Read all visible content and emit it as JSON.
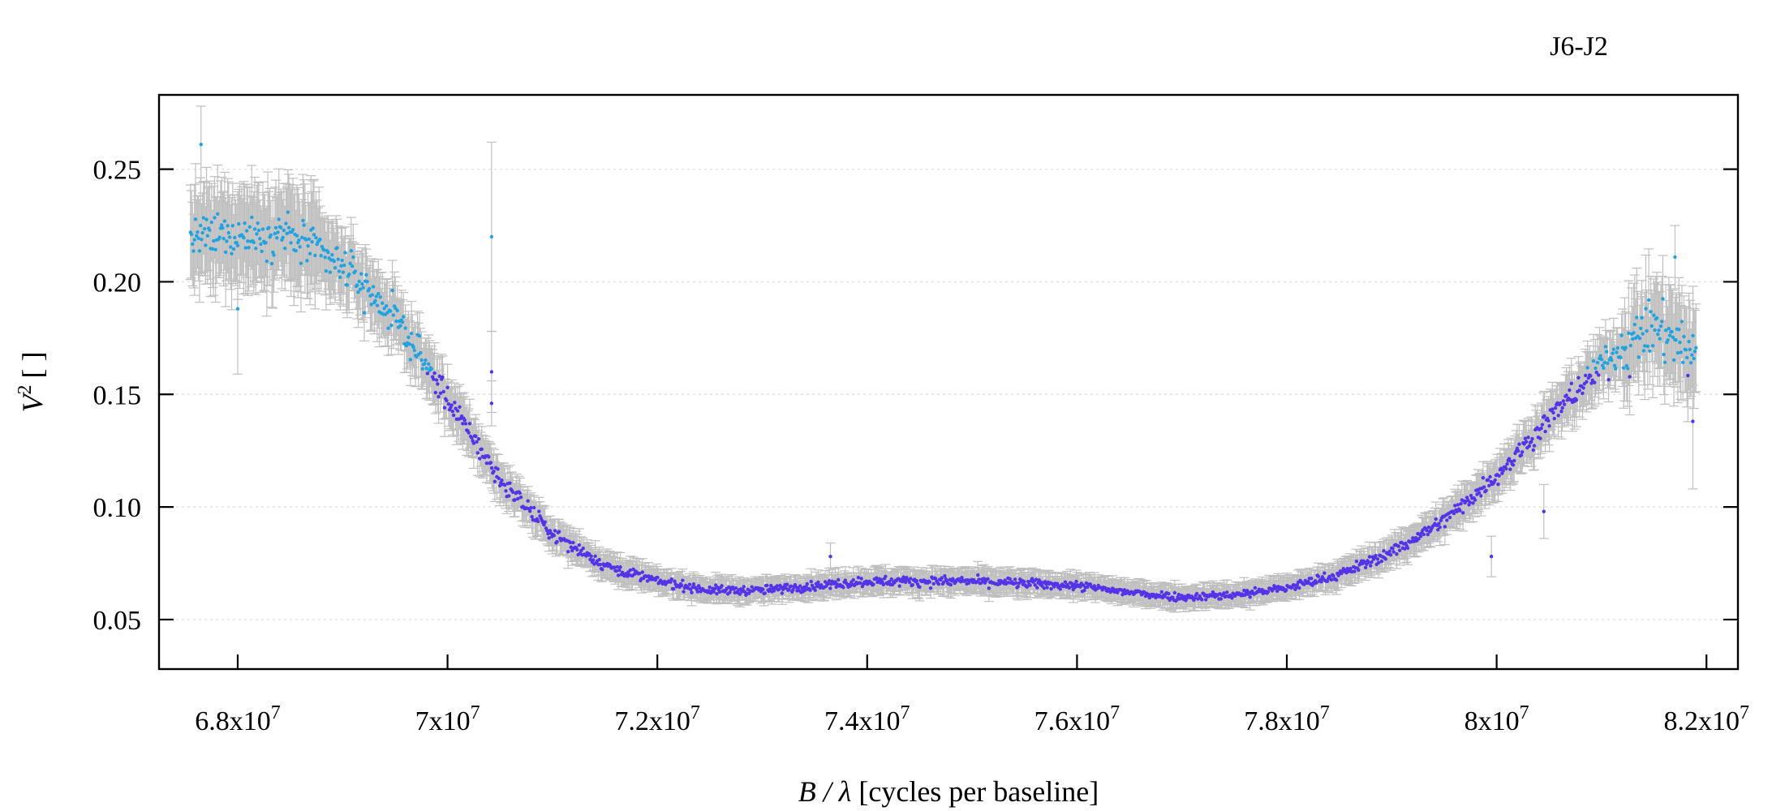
{
  "chart_data": {
    "type": "scatter",
    "label": "J6-J2",
    "xlabel_main": "B / λ",
    "xlabel_unit": "[cycles per baseline]",
    "ylabel_main": "V",
    "ylabel_sup": "2",
    "ylabel_unit": "[ ]",
    "xlim": [
      67250000,
      82300000
    ],
    "ylim": [
      0.028,
      0.283
    ],
    "x_ticks": [
      {
        "value": 68000000,
        "mantissa": "6.8",
        "base": "x10",
        "exp": "7"
      },
      {
        "value": 70000000,
        "mantissa": "7",
        "base": "x10",
        "exp": "7"
      },
      {
        "value": 72000000,
        "mantissa": "7.2",
        "base": "x10",
        "exp": "7"
      },
      {
        "value": 74000000,
        "mantissa": "7.4",
        "base": "x10",
        "exp": "7"
      },
      {
        "value": 76000000,
        "mantissa": "7.6",
        "base": "x10",
        "exp": "7"
      },
      {
        "value": 78000000,
        "mantissa": "7.8",
        "base": "x10",
        "exp": "7"
      },
      {
        "value": 80000000,
        "mantissa": "8",
        "base": "x10",
        "exp": "7"
      },
      {
        "value": 82000000,
        "mantissa": "8.2",
        "base": "x10",
        "exp": "7"
      }
    ],
    "y_ticks": [
      {
        "value": 0.05,
        "label": "0.05"
      },
      {
        "value": 0.1,
        "label": "0.10"
      },
      {
        "value": 0.15,
        "label": "0.15"
      },
      {
        "value": 0.2,
        "label": "0.20"
      },
      {
        "value": 0.25,
        "label": "0.25"
      }
    ],
    "grid": "horizontal dotted",
    "colors": {
      "low_v2": "#5533e8",
      "high_v2": "#22a3e0",
      "errorbar": "#bfbfbf",
      "grid": "#e2e2e2"
    },
    "curve_knots": [
      [
        67550000,
        0.219
      ],
      [
        68000000,
        0.221
      ],
      [
        68500000,
        0.221
      ],
      [
        69000000,
        0.207
      ],
      [
        69500000,
        0.184
      ],
      [
        70000000,
        0.148
      ],
      [
        70500000,
        0.112
      ],
      [
        71000000,
        0.088
      ],
      [
        71500000,
        0.074
      ],
      [
        72000000,
        0.067
      ],
      [
        72500000,
        0.063
      ],
      [
        73000000,
        0.063
      ],
      [
        73500000,
        0.065
      ],
      [
        74000000,
        0.067
      ],
      [
        74500000,
        0.067
      ],
      [
        75000000,
        0.067
      ],
      [
        75500000,
        0.066
      ],
      [
        76000000,
        0.065
      ],
      [
        76500000,
        0.062
      ],
      [
        77000000,
        0.06
      ],
      [
        77500000,
        0.061
      ],
      [
        78000000,
        0.064
      ],
      [
        78500000,
        0.07
      ],
      [
        79000000,
        0.08
      ],
      [
        79500000,
        0.094
      ],
      [
        80000000,
        0.114
      ],
      [
        80500000,
        0.139
      ],
      [
        81000000,
        0.163
      ],
      [
        81500000,
        0.18
      ],
      [
        81900000,
        0.168
      ]
    ],
    "outliers": [
      {
        "x": 67650000,
        "y": 0.261,
        "err": 0.017
      },
      {
        "x": 68000000,
        "y": 0.188,
        "err": 0.029
      },
      {
        "x": 70420000,
        "y": 0.22,
        "err": 0.042
      },
      {
        "x": 70420000,
        "y": 0.16,
        "err": 0.018
      },
      {
        "x": 70420000,
        "y": 0.146,
        "err": 0.01
      },
      {
        "x": 73650000,
        "y": 0.078,
        "err": 0.006
      },
      {
        "x": 79950000,
        "y": 0.078,
        "err": 0.009
      },
      {
        "x": 80450000,
        "y": 0.098,
        "err": 0.012
      },
      {
        "x": 81700000,
        "y": 0.211,
        "err": 0.014
      },
      {
        "x": 81870000,
        "y": 0.138,
        "err": 0.03
      }
    ],
    "n_points": 1500
  }
}
